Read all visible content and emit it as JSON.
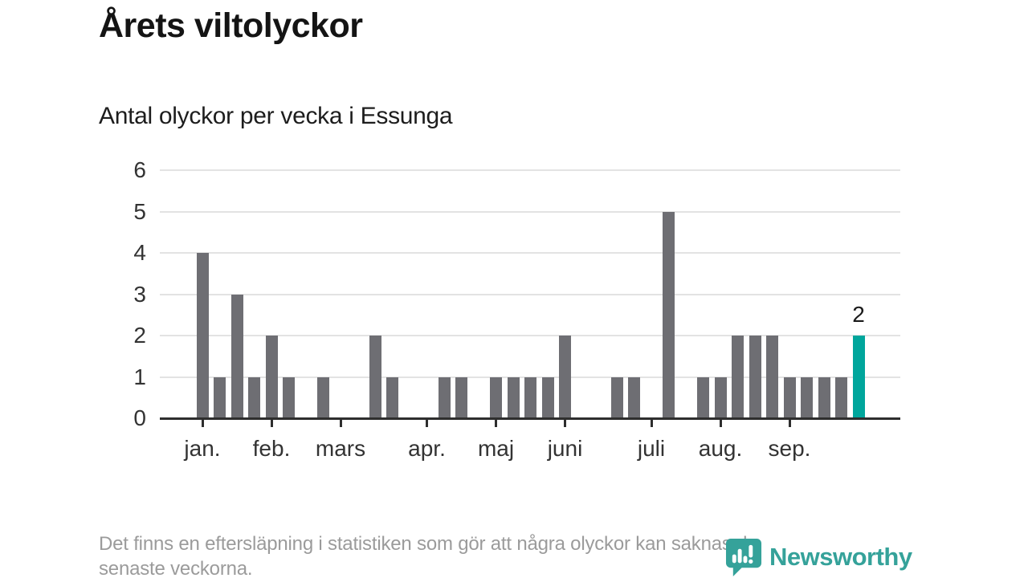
{
  "title": "Årets viltolyckor",
  "subtitle": "Antal olyckor per vecka i Essunga",
  "footer": {
    "lines": [
      "Det finns en eftersläpning i statistiken som gör att några olyckor kan saknas de",
      "senaste veckorna."
    ]
  },
  "logo": {
    "name": "Newsworthy",
    "icon": "newsworthy-speech-bubble-barchart-icon",
    "color": "#35a29a"
  },
  "colors": {
    "bar": "#6e6e73",
    "highlight": "#00a69c",
    "axis": "#2e2e2e",
    "grid": "#e3e3e3",
    "tick_text": "#333333",
    "muted_text": "#9b9b9b"
  },
  "chart_data": {
    "type": "bar",
    "title": "Årets viltolyckor",
    "subtitle": "Antal olyckor per vecka i Essunga",
    "xlabel": "",
    "ylabel": "",
    "x_unit": "vecka",
    "values": [
      4,
      1,
      3,
      1,
      2,
      1,
      0,
      1,
      0,
      0,
      2,
      1,
      0,
      0,
      1,
      1,
      0,
      1,
      1,
      1,
      1,
      2,
      0,
      0,
      1,
      1,
      0,
      5,
      0,
      1,
      1,
      2,
      2,
      2,
      1,
      1,
      1,
      1,
      2
    ],
    "month_ticks": [
      {
        "label": "jan.",
        "week_offset": 0
      },
      {
        "label": "feb.",
        "week_offset": 4
      },
      {
        "label": "mars",
        "week_offset": 8
      },
      {
        "label": "apr.",
        "week_offset": 13
      },
      {
        "label": "maj",
        "week_offset": 17
      },
      {
        "label": "juni",
        "week_offset": 21
      },
      {
        "label": "juli",
        "week_offset": 26
      },
      {
        "label": "aug.",
        "week_offset": 30
      },
      {
        "label": "sep.",
        "week_offset": 34
      }
    ],
    "y_ticks": [
      0,
      1,
      2,
      3,
      4,
      5,
      6
    ],
    "ylim": [
      0,
      6
    ],
    "grid": true,
    "legend": false,
    "highlight_last_bar": true,
    "highlight_label": "2",
    "bar_color": "#6e6e73",
    "highlight_color": "#00a69c"
  }
}
